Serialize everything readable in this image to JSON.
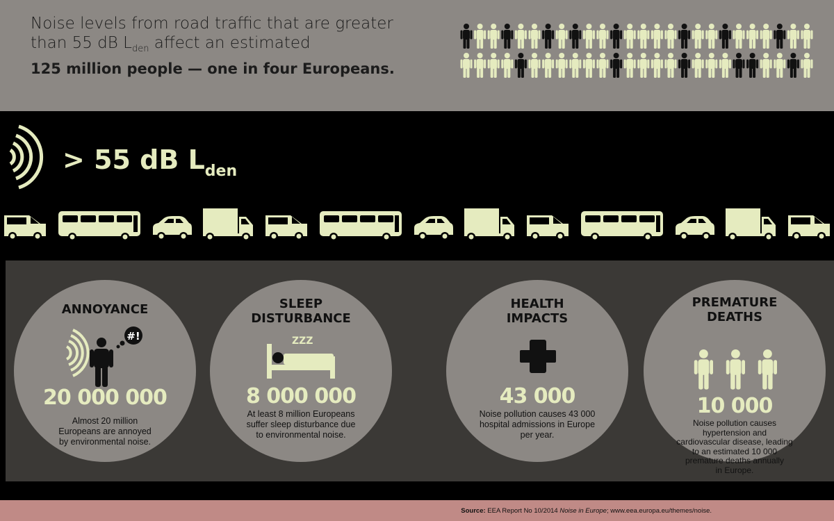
{
  "header": {
    "line1": "Noise levels from road traffic that are greater",
    "line2_pre": "than 55 dB L",
    "line2_sub": "den",
    "line2_post": " affect an estimated",
    "line3": "125 million people — one in four Europeans."
  },
  "people_grid": {
    "rows": [
      [
        1,
        0,
        0,
        1,
        0,
        0,
        1,
        0,
        1,
        0,
        0,
        1,
        0,
        0,
        0,
        0,
        1,
        0,
        0,
        1,
        0,
        0,
        0,
        1,
        0,
        0
      ],
      [
        0,
        0,
        0,
        0,
        1,
        0,
        0,
        0,
        0,
        0,
        0,
        1,
        0,
        0,
        0,
        0,
        1,
        0,
        0,
        0,
        1,
        1,
        0,
        0,
        1,
        0
      ]
    ],
    "light_color": "#e5ebbf",
    "dark_color": "#111111"
  },
  "threshold": {
    "prefix": "> 55 dB L",
    "sub": "den",
    "icon": "sound-waves-icon"
  },
  "vehicles": [
    "van",
    "bus",
    "car",
    "truck",
    "van",
    "bus",
    "car",
    "truck",
    "van",
    "bus",
    "car",
    "truck",
    "van"
  ],
  "impacts": [
    {
      "title_lines": [
        "ANNOYANCE"
      ],
      "number": "20 000 000",
      "desc_lines": [
        "Almost 20 million",
        "Europeans are annoyed",
        "by environmental noise."
      ],
      "icon": "annoyed-person-icon",
      "bubble": "#!"
    },
    {
      "title_lines": [
        "SLEEP",
        "DISTURBANCE"
      ],
      "number": "8 000 000",
      "desc_lines": [
        "At least 8 million Europeans",
        "suffer sleep disturbance due",
        "to environmental noise."
      ],
      "icon": "bed-icon",
      "zzz": "ZZZ"
    },
    {
      "title_lines": [
        "HEALTH",
        "IMPACTS"
      ],
      "number": "43 000",
      "desc_lines": [
        "Noise pollution causes 43 000",
        "hospital admissions in Europe",
        "per year."
      ],
      "icon": "medical-cross-icon"
    },
    {
      "title_lines": [
        "PREMATURE",
        "DEATHS"
      ],
      "number": "10 000",
      "desc_lines": [
        "Noise pollution causes",
        "hypertension and",
        "cardiovascular disease, leading",
        "to an estimated 10 000",
        "premature deaths annually",
        "in Europe."
      ],
      "icon": "three-people-icon"
    }
  ],
  "footer": {
    "source_label": "Source:",
    "source_pre": " EEA Report No 10/2014 ",
    "source_title": "Noise in Europe",
    "source_post": "; www.eea.europa.eu/themes/noise."
  },
  "colors": {
    "accent": "#e5ebbf",
    "grey": "#8c8884",
    "panel": "#3b3936",
    "footer": "#c08a86"
  }
}
